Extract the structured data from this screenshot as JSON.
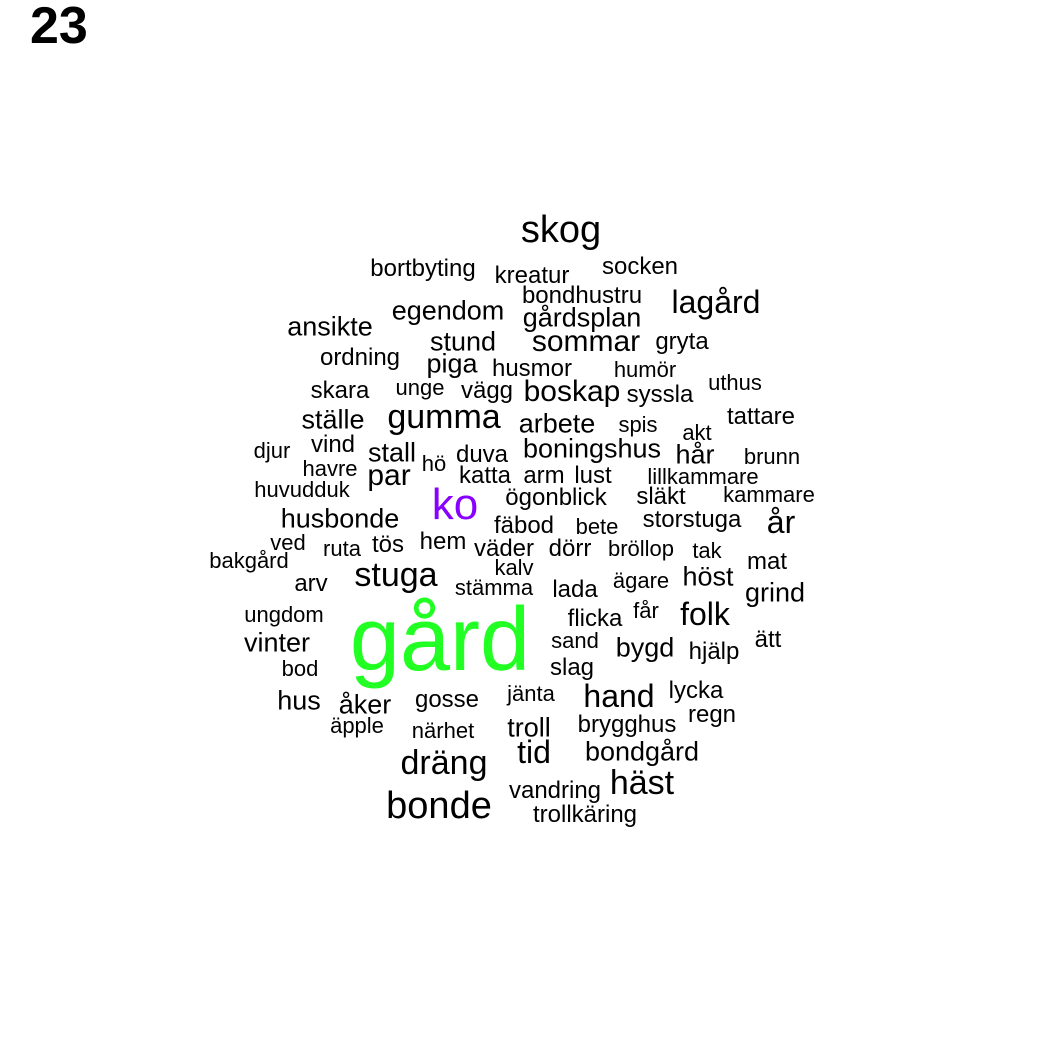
{
  "page_number": "23",
  "colors": {
    "default": "#000000",
    "primary": "#22ff22",
    "secondary": "#8800ff"
  },
  "words": [
    {
      "text": "skog",
      "weight": 38,
      "color": "default"
    },
    {
      "text": "bortbyting",
      "weight": 24,
      "color": "default"
    },
    {
      "text": "kreatur",
      "weight": 24,
      "color": "default"
    },
    {
      "text": "socken",
      "weight": 24,
      "color": "default"
    },
    {
      "text": "bondhustru",
      "weight": 24,
      "color": "default"
    },
    {
      "text": "lagård",
      "weight": 32,
      "color": "default"
    },
    {
      "text": "egendom",
      "weight": 27,
      "color": "default"
    },
    {
      "text": "gårdsplan",
      "weight": 27,
      "color": "default"
    },
    {
      "text": "ansikte",
      "weight": 27,
      "color": "default"
    },
    {
      "text": "stund",
      "weight": 27,
      "color": "default"
    },
    {
      "text": "sommar",
      "weight": 30,
      "color": "default"
    },
    {
      "text": "gryta",
      "weight": 24,
      "color": "default"
    },
    {
      "text": "ordning",
      "weight": 24,
      "color": "default"
    },
    {
      "text": "piga",
      "weight": 27,
      "color": "default"
    },
    {
      "text": "husmor",
      "weight": 24,
      "color": "default"
    },
    {
      "text": "humör",
      "weight": 22,
      "color": "default"
    },
    {
      "text": "uthus",
      "weight": 22,
      "color": "default"
    },
    {
      "text": "skara",
      "weight": 24,
      "color": "default"
    },
    {
      "text": "unge",
      "weight": 22,
      "color": "default"
    },
    {
      "text": "vägg",
      "weight": 24,
      "color": "default"
    },
    {
      "text": "boskap",
      "weight": 30,
      "color": "default"
    },
    {
      "text": "syssla",
      "weight": 24,
      "color": "default"
    },
    {
      "text": "ställe",
      "weight": 27,
      "color": "default"
    },
    {
      "text": "gumma",
      "weight": 34,
      "color": "default"
    },
    {
      "text": "arbete",
      "weight": 27,
      "color": "default"
    },
    {
      "text": "spis",
      "weight": 22,
      "color": "default"
    },
    {
      "text": "tattare",
      "weight": 24,
      "color": "default"
    },
    {
      "text": "akt",
      "weight": 22,
      "color": "default"
    },
    {
      "text": "djur",
      "weight": 22,
      "color": "default"
    },
    {
      "text": "vind",
      "weight": 24,
      "color": "default"
    },
    {
      "text": "stall",
      "weight": 27,
      "color": "default"
    },
    {
      "text": "duva",
      "weight": 24,
      "color": "default"
    },
    {
      "text": "boningshus",
      "weight": 27,
      "color": "default"
    },
    {
      "text": "hår",
      "weight": 27,
      "color": "default"
    },
    {
      "text": "brunn",
      "weight": 22,
      "color": "default"
    },
    {
      "text": "havre",
      "weight": 22,
      "color": "default"
    },
    {
      "text": "hö",
      "weight": 22,
      "color": "default"
    },
    {
      "text": "par",
      "weight": 30,
      "color": "default"
    },
    {
      "text": "katta",
      "weight": 24,
      "color": "default"
    },
    {
      "text": "arm",
      "weight": 24,
      "color": "default"
    },
    {
      "text": "lust",
      "weight": 24,
      "color": "default"
    },
    {
      "text": "lillkammare",
      "weight": 22,
      "color": "default"
    },
    {
      "text": "huvudduk",
      "weight": 22,
      "color": "default"
    },
    {
      "text": "ko",
      "weight": 44,
      "color": "secondary"
    },
    {
      "text": "ögonblick",
      "weight": 24,
      "color": "default"
    },
    {
      "text": "släkt",
      "weight": 24,
      "color": "default"
    },
    {
      "text": "kammare",
      "weight": 22,
      "color": "default"
    },
    {
      "text": "husbonde",
      "weight": 27,
      "color": "default"
    },
    {
      "text": "fäbod",
      "weight": 24,
      "color": "default"
    },
    {
      "text": "bete",
      "weight": 22,
      "color": "default"
    },
    {
      "text": "storstuga",
      "weight": 24,
      "color": "default"
    },
    {
      "text": "år",
      "weight": 32,
      "color": "default"
    },
    {
      "text": "ved",
      "weight": 22,
      "color": "default"
    },
    {
      "text": "ruta",
      "weight": 22,
      "color": "default"
    },
    {
      "text": "tös",
      "weight": 24,
      "color": "default"
    },
    {
      "text": "hem",
      "weight": 24,
      "color": "default"
    },
    {
      "text": "väder",
      "weight": 24,
      "color": "default"
    },
    {
      "text": "dörr",
      "weight": 24,
      "color": "default"
    },
    {
      "text": "bröllop",
      "weight": 22,
      "color": "default"
    },
    {
      "text": "tak",
      "weight": 22,
      "color": "default"
    },
    {
      "text": "bakgård",
      "weight": 22,
      "color": "default"
    },
    {
      "text": "kalv",
      "weight": 22,
      "color": "default"
    },
    {
      "text": "mat",
      "weight": 24,
      "color": "default"
    },
    {
      "text": "stuga",
      "weight": 34,
      "color": "default"
    },
    {
      "text": "arv",
      "weight": 24,
      "color": "default"
    },
    {
      "text": "stämma",
      "weight": 22,
      "color": "default"
    },
    {
      "text": "lada",
      "weight": 24,
      "color": "default"
    },
    {
      "text": "ägare",
      "weight": 22,
      "color": "default"
    },
    {
      "text": "höst",
      "weight": 27,
      "color": "default"
    },
    {
      "text": "grind",
      "weight": 27,
      "color": "default"
    },
    {
      "text": "ungdom",
      "weight": 22,
      "color": "default"
    },
    {
      "text": "gård",
      "weight": 90,
      "color": "primary"
    },
    {
      "text": "flicka",
      "weight": 24,
      "color": "default"
    },
    {
      "text": "får",
      "weight": 22,
      "color": "default"
    },
    {
      "text": "folk",
      "weight": 32,
      "color": "default"
    },
    {
      "text": "vinter",
      "weight": 27,
      "color": "default"
    },
    {
      "text": "sand",
      "weight": 22,
      "color": "default"
    },
    {
      "text": "bygd",
      "weight": 27,
      "color": "default"
    },
    {
      "text": "hjälp",
      "weight": 24,
      "color": "default"
    },
    {
      "text": "ätt",
      "weight": 24,
      "color": "default"
    },
    {
      "text": "bod",
      "weight": 22,
      "color": "default"
    },
    {
      "text": "slag",
      "weight": 24,
      "color": "default"
    },
    {
      "text": "jänta",
      "weight": 22,
      "color": "default"
    },
    {
      "text": "hand",
      "weight": 32,
      "color": "default"
    },
    {
      "text": "lycka",
      "weight": 24,
      "color": "default"
    },
    {
      "text": "hus",
      "weight": 27,
      "color": "default"
    },
    {
      "text": "åker",
      "weight": 27,
      "color": "default"
    },
    {
      "text": "gosse",
      "weight": 24,
      "color": "default"
    },
    {
      "text": "regn",
      "weight": 24,
      "color": "default"
    },
    {
      "text": "äpple",
      "weight": 22,
      "color": "default"
    },
    {
      "text": "närhet",
      "weight": 22,
      "color": "default"
    },
    {
      "text": "troll",
      "weight": 27,
      "color": "default"
    },
    {
      "text": "brygghus",
      "weight": 24,
      "color": "default"
    },
    {
      "text": "dräng",
      "weight": 34,
      "color": "default"
    },
    {
      "text": "tid",
      "weight": 32,
      "color": "default"
    },
    {
      "text": "bondgård",
      "weight": 27,
      "color": "default"
    },
    {
      "text": "häst",
      "weight": 34,
      "color": "default"
    },
    {
      "text": "vandring",
      "weight": 24,
      "color": "default"
    },
    {
      "text": "bonde",
      "weight": 38,
      "color": "default"
    },
    {
      "text": "trollkäring",
      "weight": 24,
      "color": "default"
    }
  ]
}
